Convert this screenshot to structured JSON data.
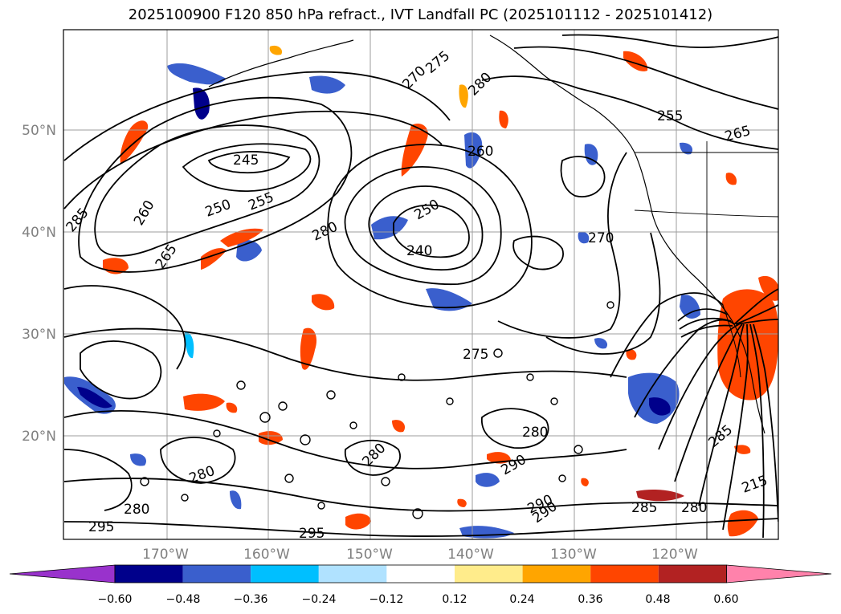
{
  "title": "2025100900 F120 850 hPa refract., IVT Landfall PC (2025101112 - 2025101412)",
  "map": {
    "lat_labels": [
      "50°N",
      "40°N",
      "30°N",
      "20°N"
    ],
    "lon_labels": [
      "170°W",
      "160°W",
      "150°W",
      "140°W",
      "130°W",
      "120°W"
    ],
    "contour_labels": [
      "245",
      "250",
      "255",
      "260",
      "265",
      "270",
      "275",
      "280",
      "285",
      "290",
      "295",
      "240",
      "275",
      "280",
      "285",
      "290",
      "295",
      "270",
      "260",
      "265",
      "255",
      "250",
      "280",
      "285",
      "280",
      "290",
      "280",
      "280",
      "280",
      "215"
    ],
    "colors": {
      "tick_label": "#808080",
      "grid": "#9e9e9e",
      "contour": "#000000"
    }
  },
  "colorbar": {
    "ticks": [
      "−0.60",
      "−0.48",
      "−0.36",
      "−0.24",
      "−0.12",
      "0.12",
      "0.24",
      "0.36",
      "0.48",
      "0.60"
    ],
    "colors": [
      "#9932CC",
      "#00008B",
      "#3A5FCD",
      "#00BFFF",
      "#B0E2FF",
      "#FFFFFF",
      "#FFEC8B",
      "#FFA500",
      "#FF4500",
      "#B22222",
      "#FF82AB"
    ]
  }
}
